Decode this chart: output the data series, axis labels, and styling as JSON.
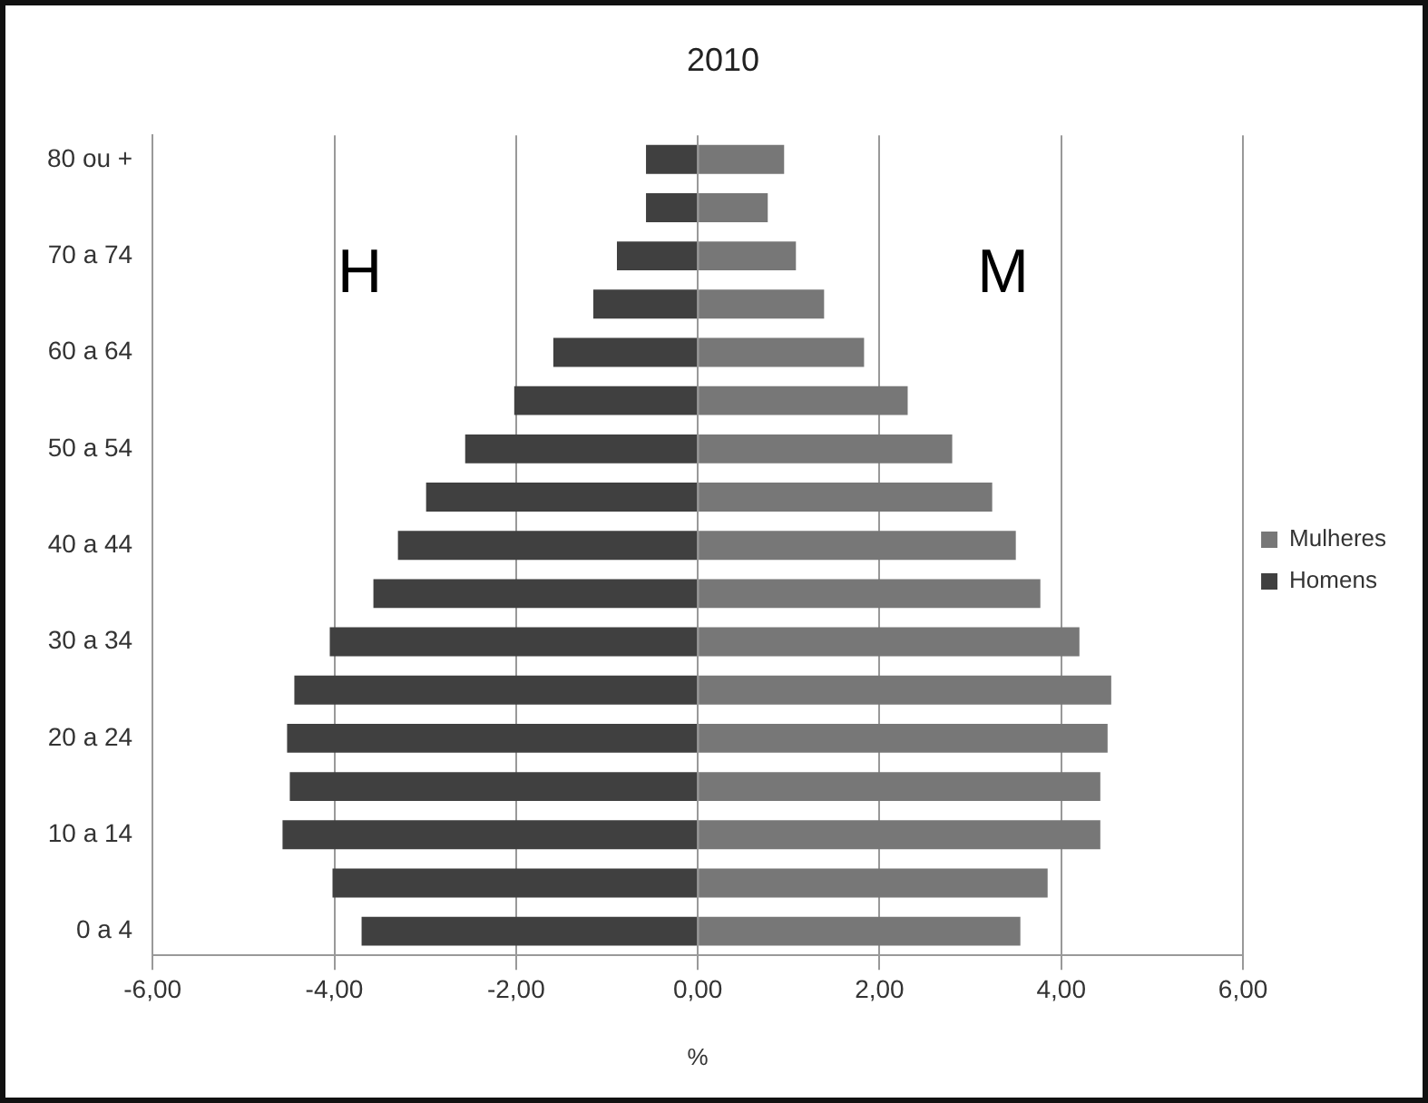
{
  "chart_data": {
    "type": "bar",
    "orientation": "horizontal",
    "stacked": true,
    "title": "2010",
    "xlabel": "%",
    "categories": [
      "80 ou +",
      null,
      "70 a 74",
      null,
      "60 a 64",
      null,
      "50 a 54",
      null,
      "40 a 44",
      null,
      "30 a 34",
      null,
      "20 a 24",
      null,
      "10 a 14",
      null,
      "0 a 4"
    ],
    "series": [
      {
        "name": "Mulheres",
        "color": "#777777",
        "values": [
          0.95,
          0.77,
          1.08,
          1.39,
          1.83,
          2.31,
          2.8,
          3.24,
          3.5,
          3.77,
          4.2,
          4.55,
          4.51,
          4.43,
          4.43,
          3.85,
          3.55
        ]
      },
      {
        "name": "Homens",
        "color": "#404040",
        "values": [
          -0.57,
          -0.57,
          -0.89,
          -1.15,
          -1.59,
          -2.02,
          -2.56,
          -2.99,
          -3.3,
          -3.57,
          -4.05,
          -4.44,
          -4.52,
          -4.49,
          -4.57,
          -4.02,
          -3.7
        ]
      }
    ],
    "xlim": [
      -6,
      6
    ],
    "xticks": [
      {
        "value": -6,
        "label": "-6,00"
      },
      {
        "value": -4,
        "label": "-4,00"
      },
      {
        "value": -2,
        "label": "-2,00"
      },
      {
        "value": 0,
        "label": "0,00"
      },
      {
        "value": 2,
        "label": "2,00"
      },
      {
        "value": 4,
        "label": "4,00"
      },
      {
        "value": 6,
        "label": "6,00"
      }
    ],
    "annotations": [
      "H",
      "M"
    ],
    "grid": "x",
    "legend": "right"
  }
}
